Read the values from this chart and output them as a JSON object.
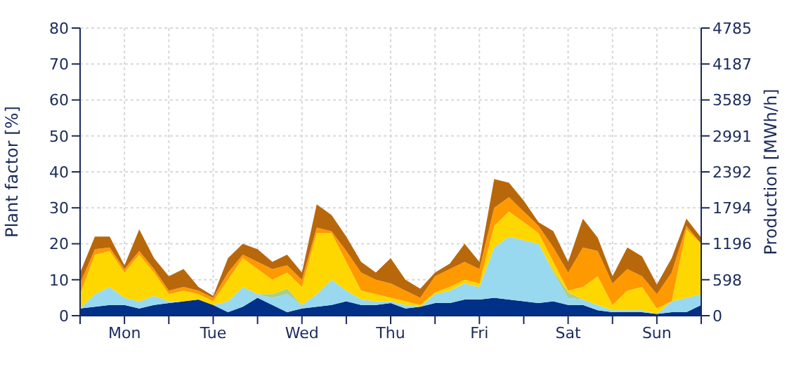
{
  "chart_data": {
    "type": "area",
    "stacked": true,
    "ylabel": "Plant factor [%]",
    "y2label": "Production [MWh/h]",
    "categories": [
      null,
      null,
      null,
      "Mon",
      null,
      null,
      null,
      null,
      null,
      "Tue",
      null,
      null,
      null,
      null,
      null,
      "Wed",
      null,
      null,
      null,
      null,
      null,
      "Thu",
      null,
      null,
      null,
      null,
      null,
      "Fri",
      null,
      null,
      null,
      null,
      null,
      "Sat",
      null,
      null,
      null,
      null,
      null,
      "Sun",
      null,
      null,
      null
    ],
    "ylim": [
      0,
      80
    ],
    "yticks": [
      0,
      10,
      20,
      30,
      40,
      50,
      60,
      70,
      80
    ],
    "y2lim": [
      0,
      4785
    ],
    "y2ticks": [
      0,
      598,
      1196,
      1794,
      2392,
      2991,
      3589,
      4187,
      4785
    ],
    "grid": true,
    "legend": false,
    "series": [
      {
        "color": "#003087",
        "values": [
          2,
          2.5,
          3,
          3,
          2,
          3,
          3.5,
          4,
          4.5,
          3,
          1,
          2.5,
          5,
          3,
          1,
          2,
          2.5,
          3,
          4,
          3,
          3,
          3.5,
          2,
          2.5,
          3.5,
          3.5,
          4.5,
          4.5,
          5,
          4.5,
          4,
          3.5,
          4,
          3,
          3,
          1.5,
          1,
          1,
          1,
          0.5,
          1,
          1,
          3
        ]
      },
      {
        "color": "#99d9f0",
        "values": [
          0,
          3.5,
          5,
          2,
          2,
          2.5,
          0.5,
          0,
          0,
          0,
          3,
          5.5,
          1,
          2,
          5,
          1,
          3.5,
          7,
          3,
          1.5,
          1,
          0.5,
          1,
          0,
          2.5,
          3.5,
          4.5,
          3.5,
          14,
          17.5,
          17,
          16.5,
          8,
          2,
          1.5,
          1.5,
          0.5,
          0.5,
          0.5,
          0,
          3,
          4,
          3
        ]
      },
      {
        "color": "#a9cf8b",
        "values": [
          null,
          null,
          null,
          null,
          null,
          null,
          null,
          null,
          null,
          null,
          null,
          null,
          0,
          1,
          1.5,
          0,
          null,
          null,
          null,
          null,
          null,
          null,
          null,
          null,
          null,
          null,
          null,
          null,
          null,
          null,
          null,
          0,
          0.5,
          1.5,
          0,
          null,
          null,
          null,
          null,
          null,
          null,
          null,
          null
        ]
      },
      {
        "color": "#ffd700",
        "values": [
          4,
          11,
          10,
          7,
          13,
          6.5,
          2,
          3,
          1.5,
          1,
          6,
          8,
          7,
          4,
          4.5,
          5,
          17,
          13,
          8,
          2.5,
          2,
          1,
          1,
          0.5,
          0.5,
          1,
          1,
          1,
          6,
          7,
          5,
          3,
          2.5,
          0.5,
          3.5,
          8,
          1.5,
          5.5,
          6.5,
          1.5,
          0,
          19,
          14
        ]
      },
      {
        "color": "#ff9900",
        "values": [
          3,
          1.5,
          1,
          1,
          1,
          1,
          1,
          1,
          1,
          1,
          2,
          1,
          2,
          3,
          2,
          2,
          1.5,
          0.5,
          3,
          5,
          4,
          4,
          3,
          2,
          4.5,
          5,
          5,
          4,
          5,
          4,
          3,
          2,
          4,
          5,
          11,
          7,
          6,
          6,
          3,
          4,
          8,
          1,
          0
        ]
      },
      {
        "color": "#b8680a",
        "values": [
          3,
          3.5,
          3,
          1,
          6,
          3,
          4,
          5,
          1,
          0.5,
          4,
          3,
          3.5,
          2,
          3,
          2,
          6.5,
          4.5,
          4,
          3,
          2,
          7,
          3,
          2.5,
          1,
          1.5,
          5,
          2,
          8,
          4,
          3,
          1,
          4.5,
          3,
          8,
          3.7,
          2,
          6,
          5.5,
          2.7,
          4,
          2,
          1.7
        ]
      }
    ]
  }
}
